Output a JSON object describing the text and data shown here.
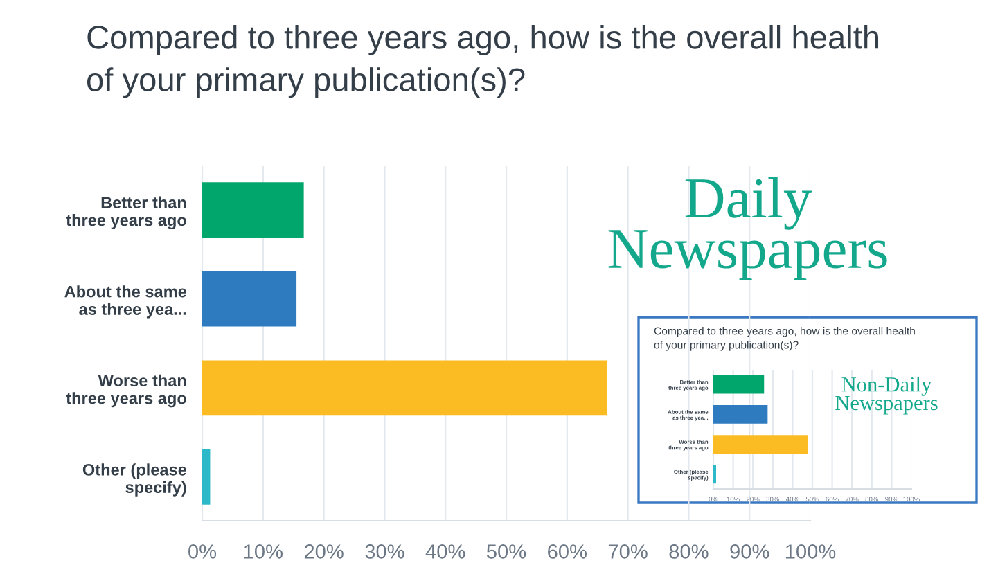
{
  "chart_data": [
    {
      "type": "bar",
      "orientation": "horizontal",
      "title": "Compared to three years ago, how is the overall health\nof your primary publication(s)?",
      "categories": [
        "Better than\nthree years ago",
        "About the same\nas three yea...",
        "Worse than\nthree years ago",
        "Other (please\nspecify)"
      ],
      "values": [
        16.7,
        15.5,
        66.6,
        1.3
      ],
      "colors": [
        "#00a66b",
        "#2e7bbf",
        "#fbbb22",
        "#2bb8c9"
      ],
      "xlim": [
        0,
        100
      ],
      "xticks": [
        {
          "value": 0,
          "label": "0%"
        },
        {
          "value": 10,
          "label": "10%"
        },
        {
          "value": 20,
          "label": "20%"
        },
        {
          "value": 30,
          "label": "30%"
        },
        {
          "value": 40,
          "label": "40%"
        },
        {
          "value": 50,
          "label": "50%"
        },
        {
          "value": 60,
          "label": "60%"
        },
        {
          "value": 70,
          "label": "70%"
        },
        {
          "value": 80,
          "label": "80%"
        },
        {
          "value": 90,
          "label": "90%"
        },
        {
          "value": 100,
          "label": "100%"
        }
      ],
      "grid": "x",
      "annotations": [
        "Daily\nNewspapers"
      ]
    },
    {
      "type": "bar",
      "orientation": "horizontal",
      "title": "Compared to three years ago, how is the overall health\nof your primary publication(s)?",
      "categories": [
        "Better than\nthree years ago",
        "About the same\nas three yea...",
        "Worse than\nthree years ago",
        "Other (please\nspecify)"
      ],
      "values": [
        25.6,
        27.4,
        47.7,
        1.4
      ],
      "colors": [
        "#00a66b",
        "#2e7bbf",
        "#fbbb22",
        "#2bb8c9"
      ],
      "xlim": [
        0,
        100
      ],
      "xticks": [
        {
          "value": 0,
          "label": "0%"
        },
        {
          "value": 10,
          "label": "10%"
        },
        {
          "value": 20,
          "label": "20%"
        },
        {
          "value": 30,
          "label": "30%"
        },
        {
          "value": 40,
          "label": "40%"
        },
        {
          "value": 50,
          "label": "50%"
        },
        {
          "value": 60,
          "label": "60%"
        },
        {
          "value": 70,
          "label": "70%"
        },
        {
          "value": 80,
          "label": "80%"
        },
        {
          "value": 90,
          "label": "90%"
        },
        {
          "value": 100,
          "label": "100%"
        }
      ],
      "grid": "x",
      "annotations": [
        "Non-Daily\nNewspapers"
      ]
    }
  ]
}
